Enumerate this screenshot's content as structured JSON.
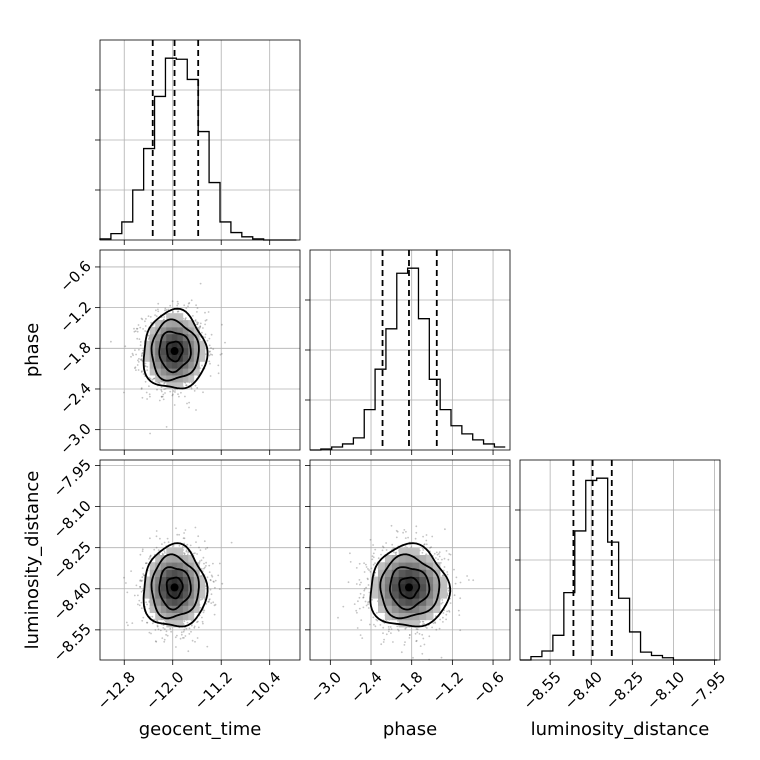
{
  "chart_data": {
    "type": "corner",
    "parameters": [
      {
        "name": "geocent_time",
        "label": "geocent_time",
        "range": [
          -13.2,
          -9.9
        ],
        "ticks": [
          -12.8,
          -12.0,
          -11.2,
          -10.4
        ],
        "tick_labels": [
          "−12.8",
          "−12.0",
          "−11.2",
          "−10.4"
        ],
        "center": -11.97,
        "sigma": 0.26,
        "quantiles": [
          -12.33,
          -11.97,
          -11.58
        ],
        "histogram": {
          "bin_edges": [
            -13.2,
            -13.02,
            -12.84,
            -12.66,
            -12.48,
            -12.3,
            -12.12,
            -11.94,
            -11.76,
            -11.58,
            -11.4,
            -11.22,
            -11.04,
            -10.86,
            -10.68,
            -10.5,
            -10.32,
            -10.14,
            -9.96
          ],
          "counts": [
            1,
            6,
            17,
            47,
            86,
            135,
            171,
            170,
            151,
            102,
            54,
            17,
            7,
            3,
            1,
            0,
            0,
            0
          ]
        }
      },
      {
        "name": "phase",
        "label": "phase",
        "range": [
          -3.3,
          -0.35
        ],
        "ticks": [
          -3.0,
          -2.4,
          -1.8,
          -1.2,
          -0.6
        ],
        "tick_labels": [
          "−3.0",
          "−2.4",
          "−1.8",
          "−1.2",
          "−0.6"
        ],
        "center": -1.84,
        "sigma": 0.29,
        "quantiles": [
          -2.23,
          -1.84,
          -1.43
        ],
        "histogram": {
          "bin_edges": [
            -3.3,
            -3.14,
            -2.98,
            -2.82,
            -2.66,
            -2.5,
            -2.34,
            -2.18,
            -2.02,
            -1.86,
            -1.7,
            -1.54,
            -1.38,
            -1.22,
            -1.06,
            -0.9,
            -0.74,
            -0.58,
            -0.42
          ],
          "counts": [
            0,
            1,
            3,
            6,
            12,
            40,
            80,
            120,
            175,
            180,
            130,
            70,
            40,
            24,
            16,
            10,
            6,
            3
          ]
        }
      },
      {
        "name": "luminosity_distance",
        "label": "luminosity_distance",
        "range": [
          -8.66,
          -7.93
        ],
        "ticks": [
          -8.55,
          -8.4,
          -8.25,
          -8.1,
          -7.95
        ],
        "tick_labels": [
          "−8.55",
          "−8.40",
          "−8.25",
          "−8.10",
          "−7.95"
        ],
        "center": -8.395,
        "sigma": 0.075,
        "quantiles": [
          -8.465,
          -8.395,
          -8.325
        ],
        "histogram": {
          "bin_edges": [
            -8.66,
            -8.62,
            -8.58,
            -8.54,
            -8.5,
            -8.46,
            -8.42,
            -8.38,
            -8.34,
            -8.3,
            -8.26,
            -8.22,
            -8.18,
            -8.14,
            -8.1,
            -8.06,
            -8.02,
            -7.98,
            -7.94
          ],
          "counts": [
            0,
            3,
            8,
            22,
            60,
            115,
            160,
            162,
            105,
            55,
            25,
            7,
            4,
            2,
            0,
            0,
            0,
            0
          ]
        }
      }
    ],
    "pairs": [
      {
        "x": "geocent_time",
        "y": "phase"
      },
      {
        "x": "geocent_time",
        "y": "luminosity_distance"
      },
      {
        "x": "phase",
        "y": "luminosity_distance"
      }
    ],
    "grid": true
  }
}
